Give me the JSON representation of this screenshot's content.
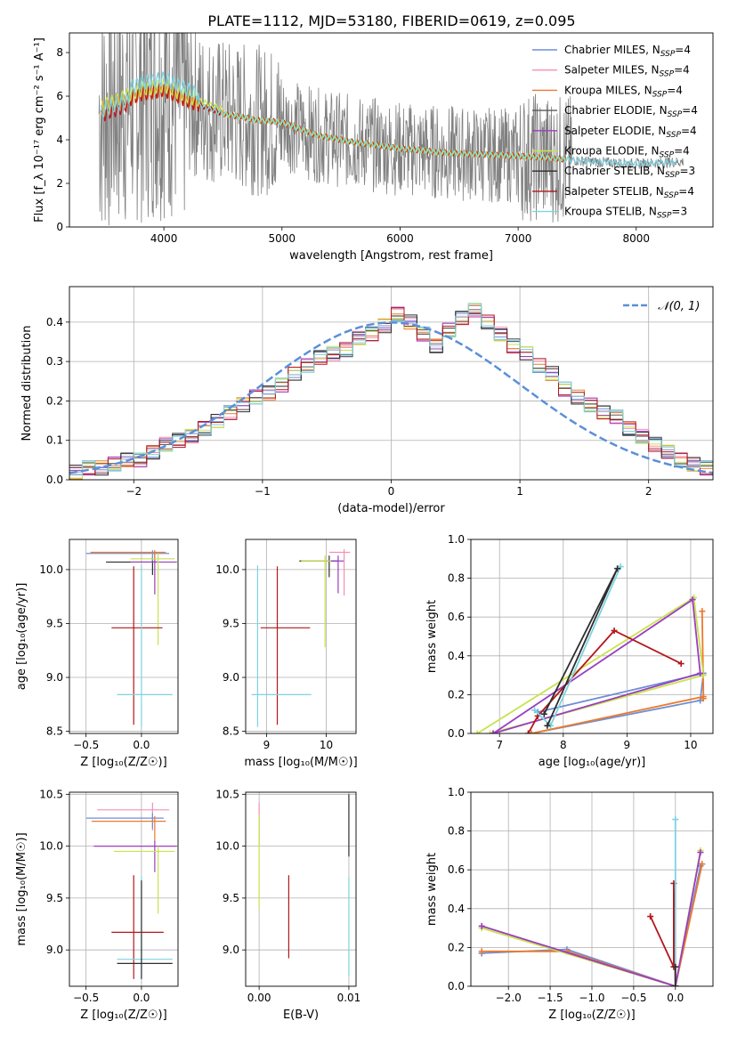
{
  "title": "PLATE=1112, MJD=53180, FIBERID=0619, z=0.095",
  "colors": {
    "chabrier_miles": "#6f8fd6",
    "salpeter_miles": "#f291b4",
    "kroupa_miles": "#ec7a2c",
    "chabrier_elodie": "#5b5b5b",
    "salpeter_elodie": "#9a3fbf",
    "kroupa_elodie": "#c8e34c",
    "chabrier_stelib": "#2e2e2e",
    "salpeter_stelib": "#b3171c",
    "kroupa_stelib": "#7dd3e0",
    "data": "#808080",
    "normal": "#5b8fd9"
  },
  "chart_data": [
    {
      "id": "spectrum",
      "type": "line",
      "xlabel": "wavelength [Angstrom, rest frame]",
      "ylabel": "Flux [f_λ 10⁻¹⁷ erg cm⁻² s⁻¹ A⁻¹]",
      "xlim": [
        3200,
        8650
      ],
      "ylim": [
        0,
        8.9
      ],
      "xticks": [
        4000,
        5000,
        6000,
        7000,
        8000
      ],
      "yticks": [
        0,
        2,
        4,
        6,
        8
      ],
      "legend_position": "top-right",
      "legend": [
        {
          "key": "chabrier_miles",
          "label": "Chabrier MILES, N",
          "sub": "SSP",
          "suffix": "=4"
        },
        {
          "key": "salpeter_miles",
          "label": "Salpeter MILES, N",
          "sub": "SSP",
          "suffix": "=4"
        },
        {
          "key": "kroupa_miles",
          "label": "Kroupa MILES, N",
          "sub": "SSP",
          "suffix": "=4"
        },
        {
          "key": "chabrier_elodie",
          "label": "Chabrier ELODIE, N",
          "sub": "SSP",
          "suffix": "=4"
        },
        {
          "key": "salpeter_elodie",
          "label": "Salpeter ELODIE, N",
          "sub": "SSP",
          "suffix": "=4"
        },
        {
          "key": "kroupa_elodie",
          "label": "Kroupa ELODIE, N",
          "sub": "SSP",
          "suffix": "=4"
        },
        {
          "key": "chabrier_stelib",
          "label": "Chabrier STELIB, N",
          "sub": "SSP",
          "suffix": "=3"
        },
        {
          "key": "salpeter_stelib",
          "label": "Salpeter STELIB, N",
          "sub": "SSP",
          "suffix": "=4"
        },
        {
          "key": "kroupa_stelib",
          "label": "Kroupa STELIB, N",
          "sub": "SSP",
          "suffix": "=3"
        }
      ],
      "continuum": {
        "x": [
          3450,
          3600,
          3800,
          4000,
          4200,
          4500,
          4800,
          5000,
          5300,
          5600,
          6000,
          6400,
          6800,
          7200,
          7600,
          8000,
          8400
        ],
        "y": [
          5.3,
          5.6,
          6.1,
          6.3,
          5.8,
          5.2,
          4.9,
          4.8,
          4.2,
          3.9,
          3.6,
          3.4,
          3.3,
          3.2,
          3.0,
          2.9,
          3.0
        ]
      }
    },
    {
      "id": "residuals",
      "type": "step",
      "xlabel": "(data-model)/error",
      "ylabel": "Normed distribution",
      "xlim": [
        -2.5,
        2.5
      ],
      "ylim": [
        0,
        0.49
      ],
      "xticks": [
        -2,
        -1,
        0,
        1,
        2
      ],
      "xticklabels": [
        "−2",
        "−1",
        "0",
        "1",
        "2"
      ],
      "yticks": [
        0.0,
        0.1,
        0.2,
        0.3,
        0.4
      ],
      "yticklabels": [
        "0.0",
        "0.1",
        "0.2",
        "0.3",
        "0.4"
      ],
      "legend": "𝒩(0, 1)",
      "bin_width": 0.1,
      "hist_base": [
        0.02,
        0.03,
        0.03,
        0.04,
        0.05,
        0.05,
        0.07,
        0.09,
        0.1,
        0.11,
        0.13,
        0.15,
        0.17,
        0.19,
        0.21,
        0.22,
        0.24,
        0.27,
        0.29,
        0.31,
        0.32,
        0.33,
        0.36,
        0.37,
        0.39,
        0.42,
        0.4,
        0.37,
        0.34,
        0.38,
        0.41,
        0.43,
        0.4,
        0.37,
        0.34,
        0.32,
        0.29,
        0.27,
        0.23,
        0.21,
        0.19,
        0.17,
        0.16,
        0.13,
        0.11,
        0.09,
        0.07,
        0.05,
        0.04,
        0.03
      ]
    },
    {
      "id": "age-Z",
      "type": "scatter",
      "xlabel": "Z [log₁₀(Z/Z☉)]",
      "ylabel": "age  [log₁₀(age/yr)]",
      "xlim": [
        -0.65,
        0.33
      ],
      "ylim": [
        8.48,
        10.28
      ],
      "xticks": [
        -0.5,
        0.0
      ],
      "xticklabels": [
        "−0.5",
        "0.0"
      ],
      "yticks": [
        8.5,
        9.0,
        9.5,
        10.0
      ],
      "yticklabels": [
        "8.5",
        "9.0",
        "9.5",
        "10.0"
      ],
      "points": [
        {
          "key": "chabrier_stelib",
          "x": 0.1,
          "y": 10.07,
          "xerr": [
            0.42,
            0.05
          ],
          "yerr": [
            0.12,
            0.05
          ]
        },
        {
          "key": "salpeter_elodie",
          "x": 0.12,
          "y": 10.07,
          "xerr": [
            0.22,
            0.2
          ],
          "yerr": [
            0.3,
            0.1
          ]
        },
        {
          "key": "chabrier_miles",
          "x": 0.1,
          "y": 10.15,
          "xerr": [
            0.6,
            0.15
          ],
          "yerr": [
            0.07,
            0.03
          ]
        },
        {
          "key": "kroupa_miles",
          "x": 0.12,
          "y": 10.16,
          "xerr": [
            0.58,
            0.1
          ],
          "yerr": [
            0.06,
            0.02
          ]
        },
        {
          "key": "kroupa_elodie",
          "x": 0.15,
          "y": 10.1,
          "xerr": [
            0.25,
            0.15
          ],
          "yerr": [
            0.8,
            0.05
          ]
        },
        {
          "key": "salpeter_stelib",
          "x": -0.07,
          "y": 9.46,
          "xerr": [
            0.2,
            0.26
          ],
          "yerr": [
            0.9,
            0.57
          ]
        },
        {
          "key": "kroupa_stelib",
          "x": 0.0,
          "y": 8.84,
          "xerr": [
            0.22,
            0.28
          ],
          "yerr": [
            0.3,
            1.2
          ]
        }
      ]
    },
    {
      "id": "age-mass",
      "type": "scatter",
      "xlabel": "mass [log₁₀(M/M☉)]",
      "ylabel": "",
      "xlim": [
        8.65,
        10.5
      ],
      "ylim": [
        8.48,
        10.28
      ],
      "xticks": [
        9,
        10
      ],
      "xticklabels": [
        "9",
        "10"
      ],
      "yticks": [
        8.5,
        9.0,
        9.5,
        10.0
      ],
      "yticklabels": [
        "8.5",
        "9.0",
        "9.5",
        "10.0"
      ],
      "points": [
        {
          "key": "chabrier_stelib",
          "x": 10.05,
          "y": 10.08,
          "xerr": [
            0.5,
            0.15
          ],
          "yerr": [
            0.15,
            0.05
          ]
        },
        {
          "key": "salpeter_elodie",
          "x": 10.2,
          "y": 10.08,
          "xerr": [
            0.45,
            0.1
          ],
          "yerr": [
            0.3,
            0.05
          ]
        },
        {
          "key": "salpeter_miles",
          "x": 10.3,
          "y": 10.16,
          "xerr": [
            0.25,
            0.1
          ],
          "yerr": [
            0.4,
            0.03
          ]
        },
        {
          "key": "kroupa_elodie",
          "x": 9.98,
          "y": 10.08,
          "xerr": [
            0.4,
            0.1
          ],
          "yerr": [
            0.8,
            0.05
          ]
        },
        {
          "key": "salpeter_stelib",
          "x": 9.18,
          "y": 9.46,
          "xerr": [
            0.28,
            0.55
          ],
          "yerr": [
            0.9,
            0.57
          ]
        },
        {
          "key": "kroupa_stelib",
          "x": 8.85,
          "y": 8.84,
          "xerr": [
            0.1,
            0.9
          ],
          "yerr": [
            0.3,
            1.2
          ]
        }
      ]
    },
    {
      "id": "weight-age",
      "type": "line",
      "xlabel": "age  [log₁₀(age/yr)]",
      "ylabel": "mass weight",
      "xlim": [
        6.55,
        10.35
      ],
      "ylim": [
        0,
        1.0
      ],
      "xticks": [
        7,
        8,
        9,
        10
      ],
      "xticklabels": [
        "7",
        "8",
        "9",
        "10"
      ],
      "yticks": [
        0.0,
        0.2,
        0.4,
        0.6,
        0.8,
        1.0
      ],
      "yticklabels": [
        "0.0",
        "0.2",
        "0.4",
        "0.6",
        "0.8",
        "1.0"
      ],
      "series": [
        {
          "key": "chabrier_miles",
          "x": [
            7.5,
            10.15,
            10.2,
            7.6
          ],
          "y": [
            0.0,
            0.17,
            0.31,
            0.11
          ]
        },
        {
          "key": "kroupa_miles",
          "x": [
            7.5,
            10.2,
            10.18,
            10.2
          ],
          "y": [
            0.0,
            0.19,
            0.63,
            0.18
          ]
        },
        {
          "key": "kroupa_elodie",
          "x": [
            6.65,
            10.05,
            10.2,
            6.85
          ],
          "y": [
            0.0,
            0.7,
            0.3,
            0.0
          ]
        },
        {
          "key": "salpeter_elodie",
          "x": [
            6.9,
            10.03,
            10.15,
            6.9
          ],
          "y": [
            0.0,
            0.69,
            0.31,
            0.0
          ]
        },
        {
          "key": "salpeter_stelib",
          "x": [
            7.45,
            7.6,
            8.8,
            9.85
          ],
          "y": [
            0.0,
            0.09,
            0.53,
            0.36
          ]
        },
        {
          "key": "kroupa_stelib",
          "x": [
            7.55,
            7.8,
            8.9,
            7.8
          ],
          "y": [
            0.12,
            0.04,
            0.86,
            0.04
          ]
        },
        {
          "key": "chabrier_stelib",
          "x": [
            7.7,
            8.85,
            7.75
          ],
          "y": [
            0.1,
            0.85,
            0.04
          ]
        }
      ]
    },
    {
      "id": "mass-Z",
      "type": "scatter",
      "xlabel": "Z [log₁₀(Z/Z☉)]",
      "ylabel": "mass [log₁₀(M/M☉)]",
      "xlim": [
        -0.65,
        0.33
      ],
      "ylim": [
        8.65,
        10.52
      ],
      "xticks": [
        -0.5,
        0.0
      ],
      "xticklabels": [
        "−0.5",
        "0.0"
      ],
      "yticks": [
        9.0,
        9.5,
        10.0,
        10.5
      ],
      "yticklabels": [
        "9.0",
        "9.5",
        "10.0",
        "10.5"
      ],
      "points": [
        {
          "key": "salpeter_miles",
          "x": 0.1,
          "y": 10.35,
          "xerr": [
            0.5,
            0.15
          ],
          "yerr": [
            0.2,
            0.07
          ]
        },
        {
          "key": "chabrier_miles",
          "x": 0.1,
          "y": 10.27,
          "xerr": [
            0.6,
            0.1
          ],
          "yerr": [
            0.1,
            0.05
          ]
        },
        {
          "key": "kroupa_miles",
          "x": 0.12,
          "y": 10.24,
          "xerr": [
            0.57,
            0.1
          ],
          "yerr": [
            0.2,
            0.05
          ]
        },
        {
          "key": "salpeter_elodie",
          "x": 0.12,
          "y": 10.0,
          "xerr": [
            0.55,
            0.2
          ],
          "yerr": [
            0.25,
            0.05
          ]
        },
        {
          "key": "kroupa_elodie",
          "x": 0.15,
          "y": 9.95,
          "xerr": [
            0.4,
            0.15
          ],
          "yerr": [
            0.6,
            0.05
          ]
        },
        {
          "key": "salpeter_stelib",
          "x": -0.07,
          "y": 9.17,
          "xerr": [
            0.2,
            0.27
          ],
          "yerr": [
            0.45,
            0.55
          ]
        },
        {
          "key": "kroupa_stelib",
          "x": 0.0,
          "y": 8.91,
          "xerr": [
            0.22,
            0.28
          ],
          "yerr": [
            0.2,
            0.8
          ]
        },
        {
          "key": "chabrier_stelib",
          "x": 0.0,
          "y": 8.87,
          "xerr": [
            0.22,
            0.28
          ],
          "yerr": [
            0.15,
            0.8
          ]
        }
      ]
    },
    {
      "id": "mass-EBV",
      "type": "scatter",
      "xlabel": "E(B-V)",
      "ylabel": "",
      "xlim": [
        -0.0015,
        0.0108
      ],
      "ylim": [
        8.65,
        10.52
      ],
      "xticks": [
        0.0,
        0.01
      ],
      "xticklabels": [
        "0.00",
        "0.01"
      ],
      "yticks": [
        9.0,
        9.5,
        10.0,
        10.5
      ],
      "yticklabels": [
        "9.0",
        "9.5",
        "10.0",
        "10.5"
      ],
      "points": [
        {
          "key": "salpeter_miles",
          "x": 0.0,
          "y": 10.3,
          "xerr": [
            0,
            0
          ],
          "yerr": [
            0.3,
            0.12
          ]
        },
        {
          "key": "kroupa_elodie",
          "x": 0.0,
          "y": 10.0,
          "xerr": [
            0,
            0
          ],
          "yerr": [
            0.6,
            0.3
          ]
        },
        {
          "key": "salpeter_stelib",
          "x": 0.0033,
          "y": 9.3,
          "xerr": [
            0,
            0
          ],
          "yerr": [
            0.38,
            0.42
          ]
        },
        {
          "key": "kroupa_stelib",
          "x": 0.01,
          "y": 9.2,
          "xerr": [
            0,
            0
          ],
          "yerr": [
            0.45,
            0.5
          ]
        },
        {
          "key": "chabrier_stelib",
          "x": 0.01,
          "y": 10.2,
          "xerr": [
            0,
            0
          ],
          "yerr": [
            0.3,
            0.3
          ]
        }
      ]
    },
    {
      "id": "weight-Z",
      "type": "line",
      "xlabel": "Z [log₁₀(Z/Z☉)]",
      "ylabel": "mass weight",
      "xlim": [
        -2.45,
        0.45
      ],
      "ylim": [
        0,
        1.0
      ],
      "xticks": [
        -2.0,
        -1.5,
        -1.0,
        -0.5,
        0.0
      ],
      "xticklabels": [
        "−2.0",
        "−1.5",
        "−1.0",
        "−0.5",
        "0.0"
      ],
      "yticks": [
        0.0,
        0.2,
        0.4,
        0.6,
        0.8,
        1.0
      ],
      "yticklabels": [
        "0.0",
        "0.2",
        "0.4",
        "0.6",
        "0.8",
        "1.0"
      ],
      "series": [
        {
          "key": "chabrier_miles",
          "x": [
            -2.32,
            -1.3,
            0.0,
            0.3
          ],
          "y": [
            0.17,
            0.19,
            0.0,
            0.62
          ]
        },
        {
          "key": "kroupa_miles",
          "x": [
            -2.32,
            -1.3,
            0.0,
            0.32
          ],
          "y": [
            0.18,
            0.18,
            0.0,
            0.63
          ]
        },
        {
          "key": "kroupa_elodie",
          "x": [
            -2.32,
            0.0,
            0.3
          ],
          "y": [
            0.3,
            0.0,
            0.7
          ]
        },
        {
          "key": "salpeter_elodie",
          "x": [
            -2.32,
            0.0,
            0.3
          ],
          "y": [
            0.31,
            0.0,
            0.69
          ]
        },
        {
          "key": "salpeter_stelib",
          "x": [
            -0.3,
            -0.02,
            -0.02,
            0.0
          ],
          "y": [
            0.36,
            0.1,
            0.53,
            0.0
          ]
        },
        {
          "key": "kroupa_stelib",
          "x": [
            0.0,
            0.0
          ],
          "y": [
            0.0,
            0.86
          ]
        },
        {
          "key": "chabrier_stelib",
          "x": [
            0.0,
            0.0
          ],
          "y": [
            0.0,
            0.1
          ]
        }
      ]
    }
  ]
}
